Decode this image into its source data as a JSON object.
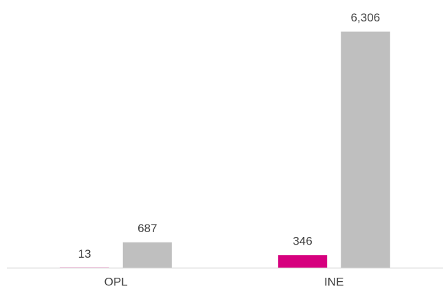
{
  "chart_data": {
    "type": "bar",
    "categories": [
      "OPL",
      "INE"
    ],
    "series": [
      {
        "color": "#d6007e",
        "values": [
          13,
          346
        ]
      },
      {
        "color": "#bfbfbf",
        "values": [
          687,
          6306
        ],
        "value_labels": [
          "687",
          "6,306"
        ]
      }
    ],
    "ylim": [
      0,
      7000
    ]
  }
}
